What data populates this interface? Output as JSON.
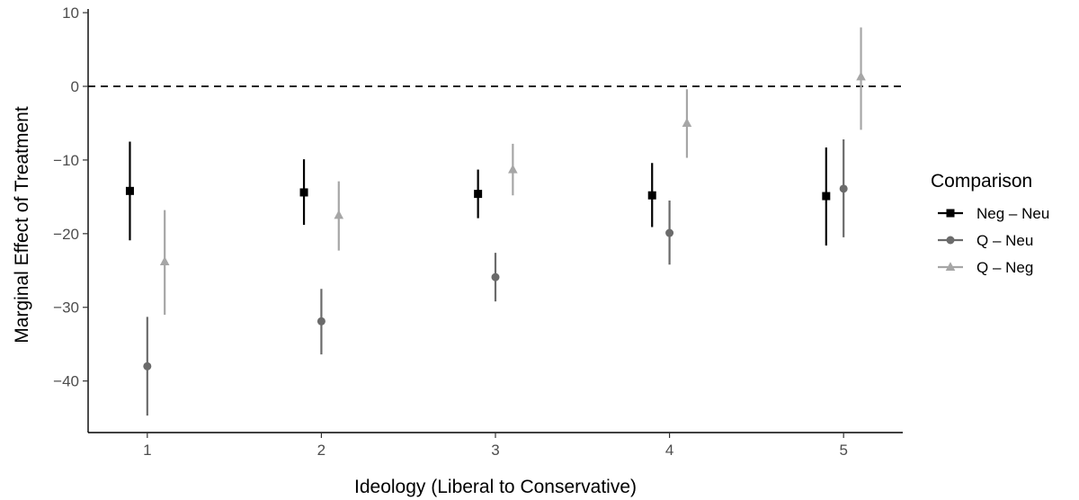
{
  "chart_data": {
    "type": "scatter",
    "xlabel": "Ideology (Liberal to Conservative)",
    "ylabel": "Marginal Effect of Treatment",
    "x_ticks": [
      1,
      2,
      3,
      4,
      5
    ],
    "y_ticks": [
      10,
      0,
      -10,
      -20,
      -30,
      -40
    ],
    "xlim": [
      0.66,
      5.34
    ],
    "ylim": [
      -47,
      10.5
    ],
    "reference_line": 0,
    "grid": false,
    "legend": {
      "title": "Comparison",
      "position": "right"
    },
    "series": [
      {
        "name": "Neg – Neu",
        "marker": "square",
        "color": "#000000",
        "offset": -0.1,
        "points": [
          {
            "x": 1,
            "y": -14.2,
            "low": -20.9,
            "high": -7.5
          },
          {
            "x": 2,
            "y": -14.4,
            "low": -18.8,
            "high": -9.9
          },
          {
            "x": 3,
            "y": -14.6,
            "low": -17.9,
            "high": -11.3
          },
          {
            "x": 4,
            "y": -14.8,
            "low": -19.1,
            "high": -10.4
          },
          {
            "x": 5,
            "y": -14.9,
            "low": -21.6,
            "high": -8.3
          }
        ]
      },
      {
        "name": "Q – Neu",
        "marker": "circle",
        "color": "#6b6b6b",
        "offset": 0,
        "points": [
          {
            "x": 1,
            "y": -38.0,
            "low": -44.7,
            "high": -31.3
          },
          {
            "x": 2,
            "y": -31.9,
            "low": -36.4,
            "high": -27.5
          },
          {
            "x": 3,
            "y": -25.9,
            "low": -29.2,
            "high": -22.6
          },
          {
            "x": 4,
            "y": -19.9,
            "low": -24.2,
            "high": -15.5
          },
          {
            "x": 5,
            "y": -13.9,
            "low": -20.5,
            "high": -7.2
          }
        ]
      },
      {
        "name": "Q – Neg",
        "marker": "triangle",
        "color": "#a6a6a6",
        "offset": 0.1,
        "points": [
          {
            "x": 1,
            "y": -23.8,
            "low": -31.0,
            "high": -16.8
          },
          {
            "x": 2,
            "y": -17.5,
            "low": -22.3,
            "high": -12.9
          },
          {
            "x": 3,
            "y": -11.3,
            "low": -14.8,
            "high": -7.8
          },
          {
            "x": 4,
            "y": -5.0,
            "low": -9.7,
            "high": -0.4
          },
          {
            "x": 5,
            "y": 1.3,
            "low": -5.9,
            "high": 8.0
          }
        ]
      }
    ]
  }
}
